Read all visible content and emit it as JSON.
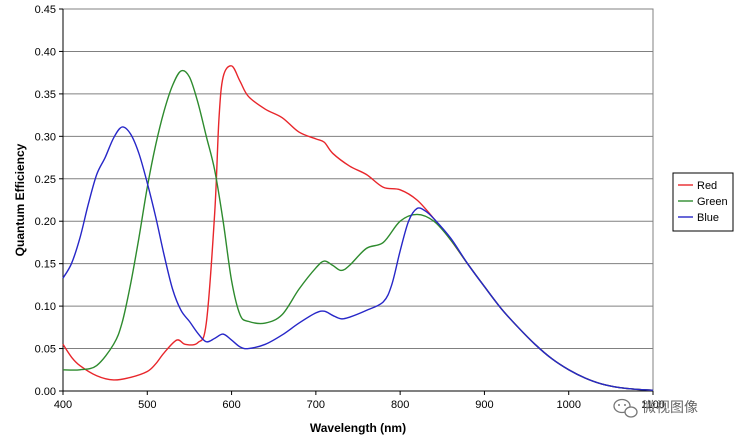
{
  "chart_data": {
    "type": "line",
    "title": "",
    "xlabel": "Wavelength (nm)",
    "ylabel": "Quantum Efficiency",
    "xlim": [
      400,
      1100
    ],
    "ylim": [
      0,
      0.45
    ],
    "x_ticks": [
      "400",
      "500",
      "600",
      "700",
      "800",
      "900",
      "1000",
      "1100"
    ],
    "y_ticks": [
      "0.00",
      "0.05",
      "0.10",
      "0.15",
      "0.20",
      "0.25",
      "0.30",
      "0.35",
      "0.40",
      "0.45"
    ],
    "grid": "horizontal",
    "legend_position": "right",
    "background": "#ffffff",
    "series": [
      {
        "name": "Red",
        "color": "#e8262b",
        "x": [
          400,
          410,
          420,
          440,
          460,
          480,
          500,
          510,
          520,
          535,
          545,
          560,
          570,
          580,
          585,
          590,
          600,
          610,
          620,
          640,
          660,
          680,
          700,
          710,
          720,
          740,
          760,
          780,
          800,
          820,
          840,
          860,
          880,
          900,
          920,
          940,
          960,
          980,
          1000,
          1020,
          1040,
          1060,
          1080,
          1100
        ],
        "values": [
          0.055,
          0.04,
          0.03,
          0.018,
          0.013,
          0.016,
          0.023,
          0.032,
          0.045,
          0.06,
          0.055,
          0.057,
          0.08,
          0.21,
          0.32,
          0.37,
          0.383,
          0.365,
          0.347,
          0.332,
          0.322,
          0.305,
          0.297,
          0.293,
          0.28,
          0.265,
          0.255,
          0.24,
          0.237,
          0.225,
          0.203,
          0.178,
          0.15,
          0.123,
          0.097,
          0.075,
          0.055,
          0.038,
          0.025,
          0.015,
          0.008,
          0.004,
          0.002,
          0.001
        ]
      },
      {
        "name": "Green",
        "color": "#2e8b2e",
        "x": [
          400,
          420,
          440,
          460,
          470,
          480,
          490,
          500,
          510,
          520,
          530,
          540,
          550,
          560,
          570,
          580,
          590,
          600,
          610,
          620,
          640,
          660,
          680,
          700,
          710,
          720,
          730,
          740,
          760,
          780,
          800,
          820,
          840,
          860,
          880,
          900,
          920,
          940,
          960,
          980,
          1000,
          1020,
          1040,
          1060,
          1080,
          1100
        ],
        "values": [
          0.025,
          0.025,
          0.03,
          0.055,
          0.08,
          0.125,
          0.18,
          0.24,
          0.29,
          0.33,
          0.36,
          0.377,
          0.37,
          0.34,
          0.3,
          0.26,
          0.2,
          0.13,
          0.09,
          0.082,
          0.08,
          0.09,
          0.12,
          0.145,
          0.153,
          0.148,
          0.142,
          0.148,
          0.168,
          0.175,
          0.2,
          0.208,
          0.2,
          0.178,
          0.15,
          0.123,
          0.097,
          0.075,
          0.055,
          0.038,
          0.025,
          0.015,
          0.008,
          0.004,
          0.002,
          0.001
        ]
      },
      {
        "name": "Blue",
        "color": "#2727c8",
        "x": [
          400,
          410,
          420,
          430,
          440,
          450,
          460,
          470,
          480,
          490,
          500,
          510,
          520,
          530,
          540,
          550,
          560,
          570,
          580,
          590,
          600,
          610,
          620,
          640,
          660,
          680,
          700,
          710,
          720,
          730,
          740,
          760,
          780,
          790,
          800,
          810,
          820,
          830,
          840,
          860,
          880,
          900,
          920,
          940,
          960,
          980,
          1000,
          1020,
          1040,
          1060,
          1080,
          1100
        ],
        "values": [
          0.133,
          0.15,
          0.18,
          0.22,
          0.255,
          0.275,
          0.298,
          0.311,
          0.303,
          0.28,
          0.245,
          0.205,
          0.16,
          0.12,
          0.095,
          0.082,
          0.068,
          0.058,
          0.062,
          0.067,
          0.06,
          0.052,
          0.05,
          0.055,
          0.066,
          0.08,
          0.092,
          0.094,
          0.089,
          0.085,
          0.087,
          0.095,
          0.105,
          0.125,
          0.165,
          0.2,
          0.215,
          0.212,
          0.203,
          0.18,
          0.15,
          0.123,
          0.097,
          0.075,
          0.055,
          0.038,
          0.025,
          0.015,
          0.008,
          0.004,
          0.002,
          0.001
        ]
      }
    ]
  },
  "watermark": {
    "text": "微视图像",
    "icon": "chat-bubble-icon"
  }
}
